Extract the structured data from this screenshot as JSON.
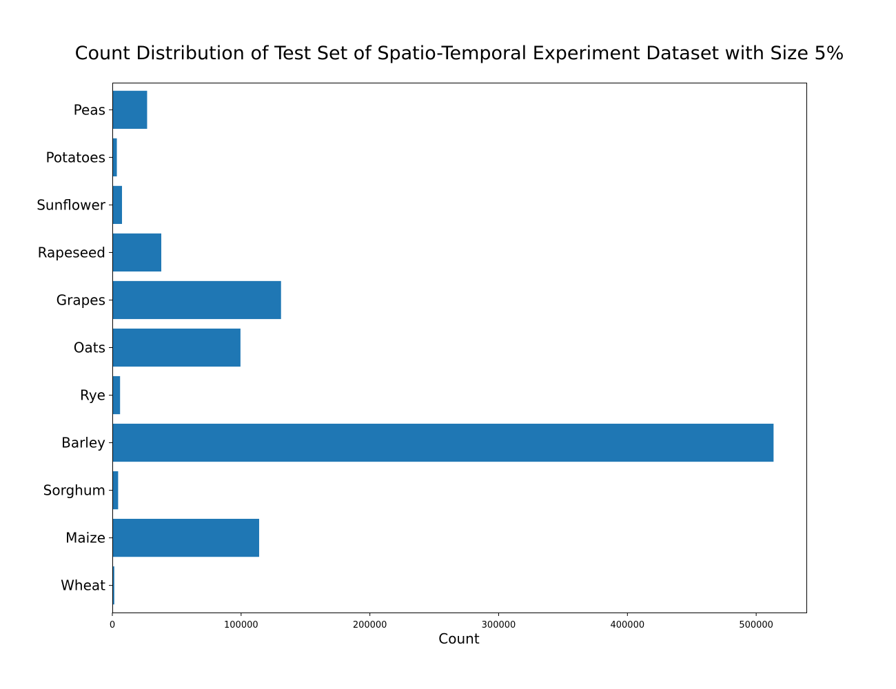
{
  "chart_data": {
    "type": "bar",
    "orientation": "horizontal",
    "title": "Count Distribution of Test Set of Spatio-Temporal Experiment Dataset with Size 5%",
    "xlabel": "Count",
    "ylabel": "",
    "categories": [
      "Wheat",
      "Maize",
      "Sorghum",
      "Barley",
      "Rye",
      "Oats",
      "Grapes",
      "Rapeseed",
      "Sunflower",
      "Potatoes",
      "Peas"
    ],
    "values": [
      1500,
      114000,
      4500,
      513500,
      6000,
      99500,
      131000,
      38000,
      7500,
      3500,
      27000
    ],
    "xlim": [
      0,
      539000
    ],
    "xticks": [
      0,
      100000,
      200000,
      300000,
      400000,
      500000
    ],
    "grid": false,
    "legend": false,
    "bar_color": "#1f77b4"
  }
}
